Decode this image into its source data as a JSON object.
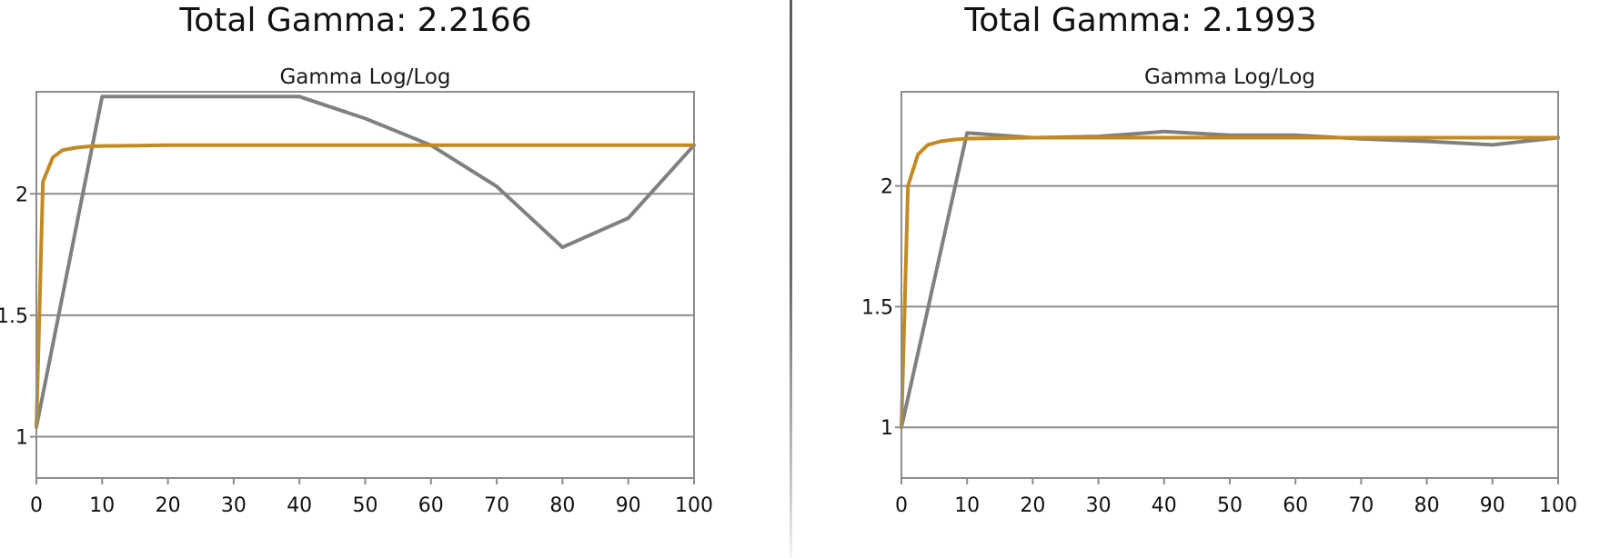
{
  "panels": [
    {
      "heading": "Total Gamma: 2.2166",
      "chart_title": "Gamma Log/Log"
    },
    {
      "heading": "Total Gamma: 2.1993",
      "chart_title": "Gamma Log/Log"
    }
  ],
  "colors": {
    "measured": "#808080",
    "target": "#c38a22",
    "frame": "#8c8c8c",
    "grid": "#8c8c8c",
    "divider": "#5e5e5e"
  },
  "chart_data": [
    {
      "type": "line",
      "title": "Gamma Log/Log",
      "xlabel": "",
      "ylabel": "",
      "xlim": [
        0,
        100
      ],
      "ylim": [
        0.83,
        2.42
      ],
      "x_ticks": [
        "0",
        "10",
        "20",
        "30",
        "40",
        "50",
        "60",
        "70",
        "80",
        "90",
        "100"
      ],
      "y_ticks": [
        "1",
        "1.5",
        "2"
      ],
      "grid": "horizontal",
      "series": [
        {
          "x": [
            0,
            10,
            20,
            30,
            40,
            50,
            60,
            70,
            80,
            90,
            100
          ],
          "values": [
            1.04,
            2.4,
            2.4,
            2.4,
            2.4,
            2.31,
            2.2,
            2.03,
            1.78,
            1.9,
            2.2
          ]
        },
        {
          "x": [
            0,
            1,
            2.5,
            4,
            6,
            8,
            10,
            15,
            20,
            30,
            40,
            50,
            60,
            70,
            80,
            90,
            100
          ],
          "values": [
            1.04,
            2.05,
            2.15,
            2.18,
            2.19,
            2.195,
            2.197,
            2.198,
            2.2,
            2.2,
            2.2,
            2.2,
            2.2,
            2.2,
            2.2,
            2.2,
            2.2
          ]
        }
      ]
    },
    {
      "type": "line",
      "title": "Gamma Log/Log",
      "xlabel": "",
      "ylabel": "",
      "xlim": [
        0,
        100
      ],
      "ylim": [
        0.79,
        2.39
      ],
      "x_ticks": [
        "0",
        "10",
        "20",
        "30",
        "40",
        "50",
        "60",
        "70",
        "80",
        "90",
        "100"
      ],
      "y_ticks": [
        "1",
        "1.5",
        "2"
      ],
      "grid": "horizontal",
      "series": [
        {
          "x": [
            0,
            10,
            20,
            30,
            40,
            50,
            60,
            70,
            80,
            90,
            100
          ],
          "values": [
            1.0,
            2.22,
            2.2,
            2.205,
            2.225,
            2.21,
            2.21,
            2.195,
            2.185,
            2.17,
            2.2
          ]
        },
        {
          "x": [
            0,
            1,
            2.5,
            4,
            6,
            8,
            10,
            15,
            20,
            30,
            40,
            50,
            60,
            70,
            80,
            90,
            100
          ],
          "values": [
            1.0,
            2.0,
            2.13,
            2.17,
            2.185,
            2.192,
            2.196,
            2.198,
            2.2,
            2.2,
            2.2,
            2.2,
            2.2,
            2.2,
            2.2,
            2.2,
            2.2
          ]
        }
      ]
    }
  ]
}
